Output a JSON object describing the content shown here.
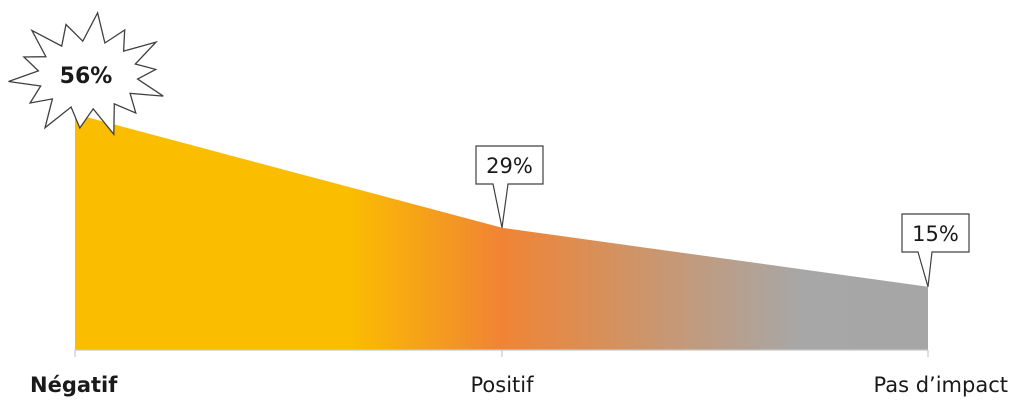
{
  "chart_data": {
    "type": "area",
    "categories": [
      "Négatif",
      "Positif",
      "Pas d’impact"
    ],
    "values": [
      56,
      29,
      15
    ],
    "data_labels": [
      "56%",
      "29%",
      "15%"
    ],
    "title": "",
    "xlabel": "",
    "ylabel": "",
    "ylim": [
      0,
      60
    ],
    "grid": false,
    "legend": "none",
    "emphasized_category": "Négatif",
    "colors": {
      "gradient": [
        "#fbbd00",
        "#fbbd00",
        "#f08434",
        "#a7a7a7",
        "#a6a6a6"
      ],
      "axis": "#c8c8c8",
      "label_border": "#404040",
      "text": "#1a1a1a"
    }
  }
}
